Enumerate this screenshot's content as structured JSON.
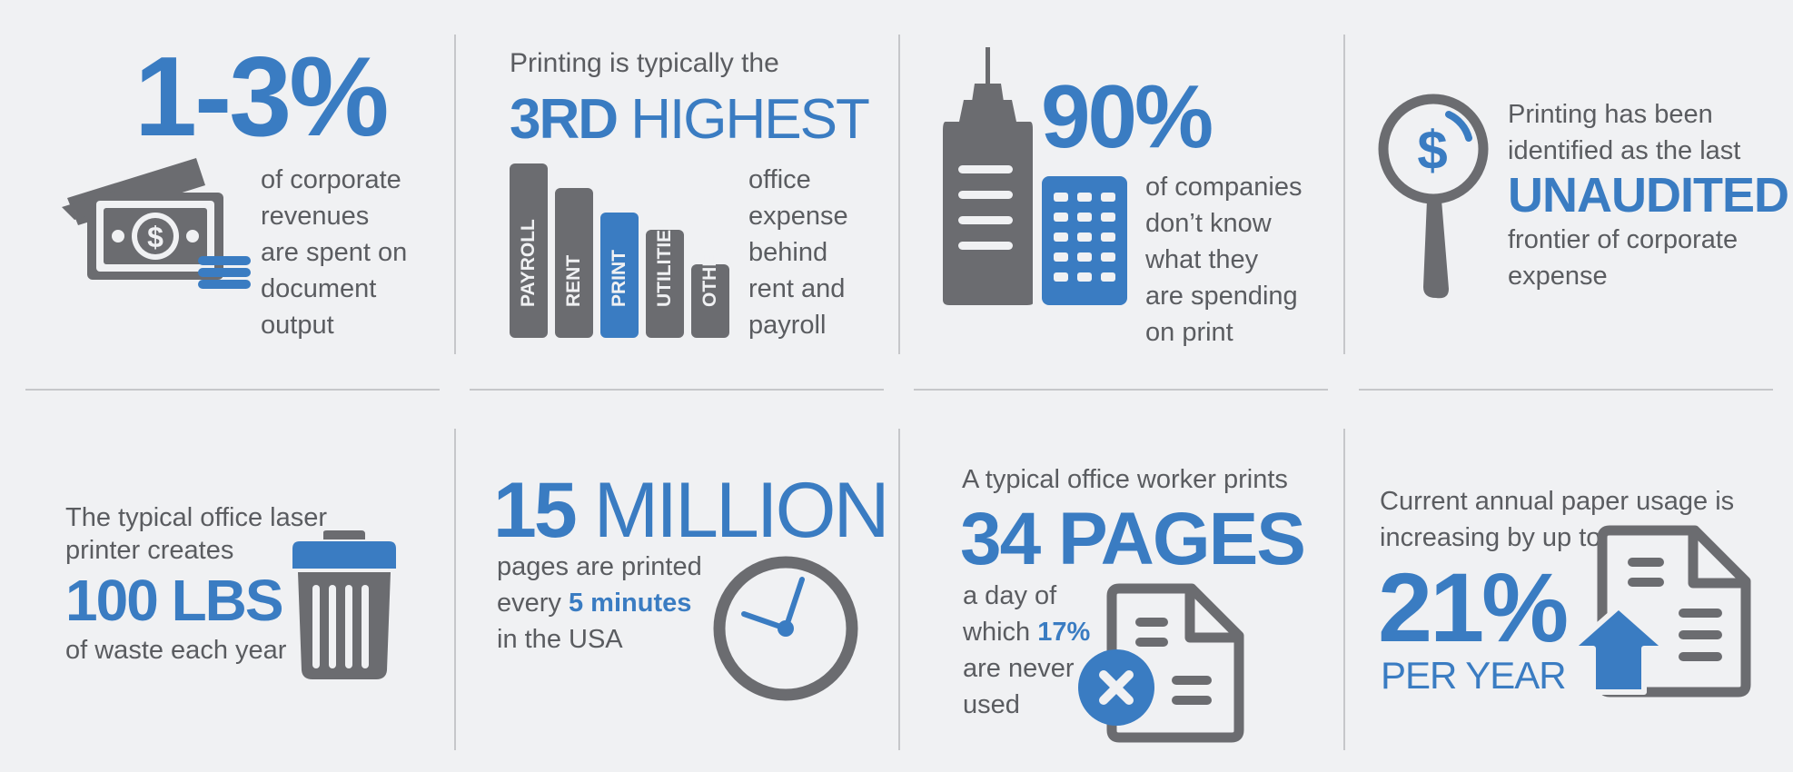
{
  "colors": {
    "accent": "#3a7cc2",
    "icon_gray": "#6b6c70",
    "text": "#5a5c60",
    "background": "#f0f1f3"
  },
  "panel1": {
    "headline": "1-3%",
    "lines": [
      "of corporate",
      "revenues",
      "are spent on",
      "document",
      "output"
    ],
    "icon": "money-stack-icon"
  },
  "panel2": {
    "intro": "Printing is typically the",
    "rank_bold": "3RD",
    "rank_light": "HIGHEST",
    "bars": [
      {
        "label": "PAYROLL",
        "value": 5,
        "highlight": false
      },
      {
        "label": "RENT",
        "value": 4.3,
        "highlight": false
      },
      {
        "label": "PRINT",
        "value": 3.6,
        "highlight": true
      },
      {
        "label": "UTILITIES",
        "value": 3.1,
        "highlight": false
      },
      {
        "label": "OTHER",
        "value": 2.1,
        "highlight": false
      }
    ],
    "lines": [
      "office",
      "expense",
      "behind",
      "rent and",
      "payroll"
    ]
  },
  "panel3": {
    "headline": "90%",
    "lines": [
      "of companies",
      "don’t know",
      "what they",
      "are spending",
      "on print"
    ],
    "icon": "buildings-icon"
  },
  "panel4": {
    "line1": "Printing has been",
    "line2": "identified as the last",
    "highlight": "UNAUDITED",
    "line3": "frontier of corporate",
    "line4": "expense",
    "icon": "magnifier-dollar-icon"
  },
  "panel5": {
    "line1": "The typical office laser",
    "line2": "printer creates",
    "highlight": "100 LBS",
    "line3": "of waste each year",
    "icon": "trash-can-icon"
  },
  "panel6": {
    "number": "15",
    "unit": "MILLION",
    "line1": "pages are printed",
    "line2_pre": "every",
    "line2_bold": "5 minutes",
    "line3": "in the USA",
    "icon": "clock-icon"
  },
  "panel7": {
    "intro": "A typical office worker prints",
    "highlight": "34 PAGES",
    "line1": "a day of",
    "line2_pre": "which",
    "line2_bold": "17%",
    "line3": "are never",
    "line4": "used",
    "icon": "document-x-icon"
  },
  "panel8": {
    "line1": "Current annual paper usage is",
    "line2": "increasing by up to",
    "headline": "21%",
    "subline": "PER YEAR",
    "icon": "document-up-arrow-icon"
  }
}
